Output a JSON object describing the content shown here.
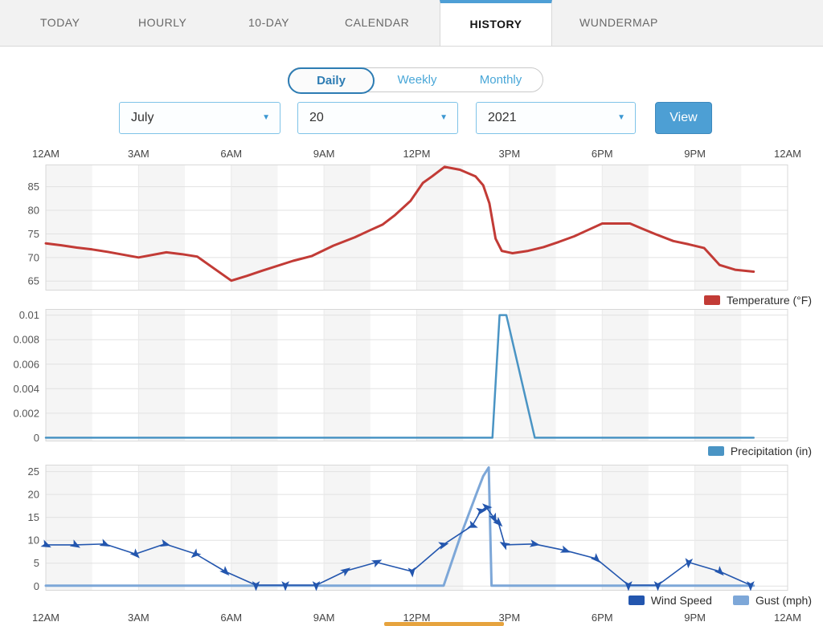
{
  "tabs": [
    {
      "label": "TODAY",
      "active": false
    },
    {
      "label": "HOURLY",
      "active": false
    },
    {
      "label": "10-DAY",
      "active": false
    },
    {
      "label": "CALENDAR",
      "active": false
    },
    {
      "label": "HISTORY",
      "active": true
    },
    {
      "label": "WUNDERMAP",
      "active": false
    }
  ],
  "period_toggle": [
    {
      "label": "Daily",
      "selected": true
    },
    {
      "label": "Weekly",
      "selected": false
    },
    {
      "label": "Monthly",
      "selected": false
    }
  ],
  "date_controls": {
    "month": "July",
    "day": "20",
    "year": "2021",
    "view_label": "View"
  },
  "colors": {
    "accent_blue": "#4e9fd6",
    "toggle_blue": "#2d7cb3",
    "temperature_red": "#c23b36",
    "precipitation_blue": "#4a94c4",
    "wind_blue": "#2356ae",
    "gust_blue": "#7da7d8",
    "scroll_orange": "#e6a33e"
  },
  "time_axis": {
    "tick_hours": [
      0,
      3,
      6,
      9,
      12,
      15,
      18,
      21,
      24
    ],
    "labels": [
      "12AM",
      "3AM",
      "6AM",
      "9AM",
      "12PM",
      "3PM",
      "6PM",
      "9PM",
      "12AM"
    ]
  },
  "chart_data": [
    {
      "type": "line",
      "name": "temperature",
      "xlim": [
        0,
        24
      ],
      "x_tick_hours": [
        0,
        3,
        6,
        9,
        12,
        15,
        18,
        21,
        24
      ],
      "ylim": [
        63,
        89.7
      ],
      "y_ticks": [
        65,
        70,
        75,
        80,
        85
      ],
      "legend": [
        {
          "label": "Temperature (°F)",
          "color": "#c23b36"
        }
      ],
      "series": [
        {
          "name": "Temperature (°F)",
          "color": "#c23b36",
          "line_width": 3,
          "points": [
            [
              0,
              73
            ],
            [
              0.5,
              72.6
            ],
            [
              1,
              72.1
            ],
            [
              1.5,
              71.7
            ],
            [
              2,
              71.2
            ],
            [
              2.5,
              70.6
            ],
            [
              3,
              70
            ],
            [
              3.9,
              71.1
            ],
            [
              4.4,
              70.7
            ],
            [
              4.9,
              70.2
            ],
            [
              6,
              65.1
            ],
            [
              6.5,
              66.1
            ],
            [
              7,
              67.2
            ],
            [
              8,
              69.3
            ],
            [
              8.6,
              70.3
            ],
            [
              9.3,
              72.5
            ],
            [
              10,
              74.3
            ],
            [
              10.5,
              75.8
            ],
            [
              10.9,
              77
            ],
            [
              11.3,
              79
            ],
            [
              11.8,
              82
            ],
            [
              12.2,
              85.8
            ],
            [
              12.5,
              87.2
            ],
            [
              12.9,
              89.2
            ],
            [
              13.4,
              88.6
            ],
            [
              13.9,
              87.2
            ],
            [
              14.15,
              85.3
            ],
            [
              14.35,
              81.5
            ],
            [
              14.55,
              74
            ],
            [
              14.75,
              71.4
            ],
            [
              15.1,
              70.9
            ],
            [
              15.6,
              71.4
            ],
            [
              16.1,
              72.2
            ],
            [
              16.6,
              73.3
            ],
            [
              17.1,
              74.5
            ],
            [
              17.5,
              75.7
            ],
            [
              18,
              77.2
            ],
            [
              18.9,
              77.2
            ],
            [
              19.3,
              76.1
            ],
            [
              19.7,
              75
            ],
            [
              20.3,
              73.5
            ],
            [
              20.8,
              72.8
            ],
            [
              21.3,
              72
            ],
            [
              21.8,
              68.4
            ],
            [
              22.3,
              67.4
            ],
            [
              22.9,
              67
            ]
          ]
        }
      ]
    },
    {
      "type": "line",
      "name": "precipitation",
      "xlim": [
        0,
        24
      ],
      "x_tick_hours": [
        0,
        3,
        6,
        9,
        12,
        15,
        18,
        21,
        24
      ],
      "ylim": [
        -0.0003,
        0.0105
      ],
      "y_ticks": [
        0,
        0.002,
        0.004,
        0.006,
        0.008,
        0.01
      ],
      "legend": [
        {
          "label": "Precipitation (in)",
          "color": "#4a94c4"
        }
      ],
      "series": [
        {
          "name": "Precipitation (in)",
          "color": "#4a94c4",
          "line_width": 2.5,
          "points": [
            [
              0,
              0
            ],
            [
              14.45,
              0
            ],
            [
              14.68,
              0.01
            ],
            [
              14.9,
              0.01
            ],
            [
              15.82,
              0
            ],
            [
              22.9,
              0
            ]
          ]
        }
      ]
    },
    {
      "type": "line",
      "name": "wind",
      "xlim": [
        0,
        24
      ],
      "x_tick_hours": [
        0,
        3,
        6,
        9,
        12,
        15,
        18,
        21,
        24
      ],
      "ylim": [
        -1,
        26.5
      ],
      "y_ticks": [
        0,
        5,
        10,
        15,
        20,
        25
      ],
      "legend": [
        {
          "label": "Wind Speed",
          "color": "#2356ae"
        },
        {
          "label": "Gust (mph)",
          "color": "#7da7d8"
        }
      ],
      "series": [
        {
          "name": "Gust (mph)",
          "color": "#7da7d8",
          "line_width": 3,
          "points": [
            [
              0,
              0.1
            ],
            [
              12.87,
              0.1
            ],
            [
              13.42,
              11
            ],
            [
              13.94,
              20.3
            ],
            [
              14.15,
              24
            ],
            [
              14.33,
              25.9
            ],
            [
              14.42,
              0.1
            ],
            [
              22.9,
              0.1
            ]
          ]
        },
        {
          "name": "Wind Speed",
          "color": "#2356ae",
          "line_width": 1.6,
          "marker": "arrow",
          "points": [
            [
              0,
              9,
              25
            ],
            [
              0.95,
              9,
              30
            ],
            [
              1.9,
              9.2,
              25
            ],
            [
              2.9,
              7,
              45
            ],
            [
              3.85,
              9.2,
              15
            ],
            [
              4.85,
              7,
              140
            ],
            [
              5.8,
              3.2,
              45
            ],
            [
              6.8,
              0.2,
              90
            ],
            [
              7.75,
              0.2,
              90
            ],
            [
              8.75,
              0.2,
              90
            ],
            [
              9.7,
              3.3,
              -35
            ],
            [
              10.7,
              5.2,
              -25
            ],
            [
              11.85,
              3.2,
              85
            ],
            [
              12.85,
              9,
              -15
            ],
            [
              13.8,
              13.2,
              20
            ],
            [
              14.07,
              16.4,
              -10
            ],
            [
              14.25,
              17.2,
              0
            ],
            [
              14.5,
              14.9,
              65
            ],
            [
              14.64,
              13.9,
              45
            ],
            [
              14.85,
              9,
              -150
            ],
            [
              15.8,
              9.2,
              10
            ],
            [
              16.8,
              7.8,
              20
            ],
            [
              17.8,
              6,
              45
            ],
            [
              18.85,
              0.2,
              90
            ],
            [
              19.8,
              0.2,
              90
            ],
            [
              20.8,
              5.2,
              95
            ],
            [
              21.8,
              3.2,
              45
            ],
            [
              22.8,
              0.2,
              90
            ]
          ]
        }
      ]
    }
  ]
}
